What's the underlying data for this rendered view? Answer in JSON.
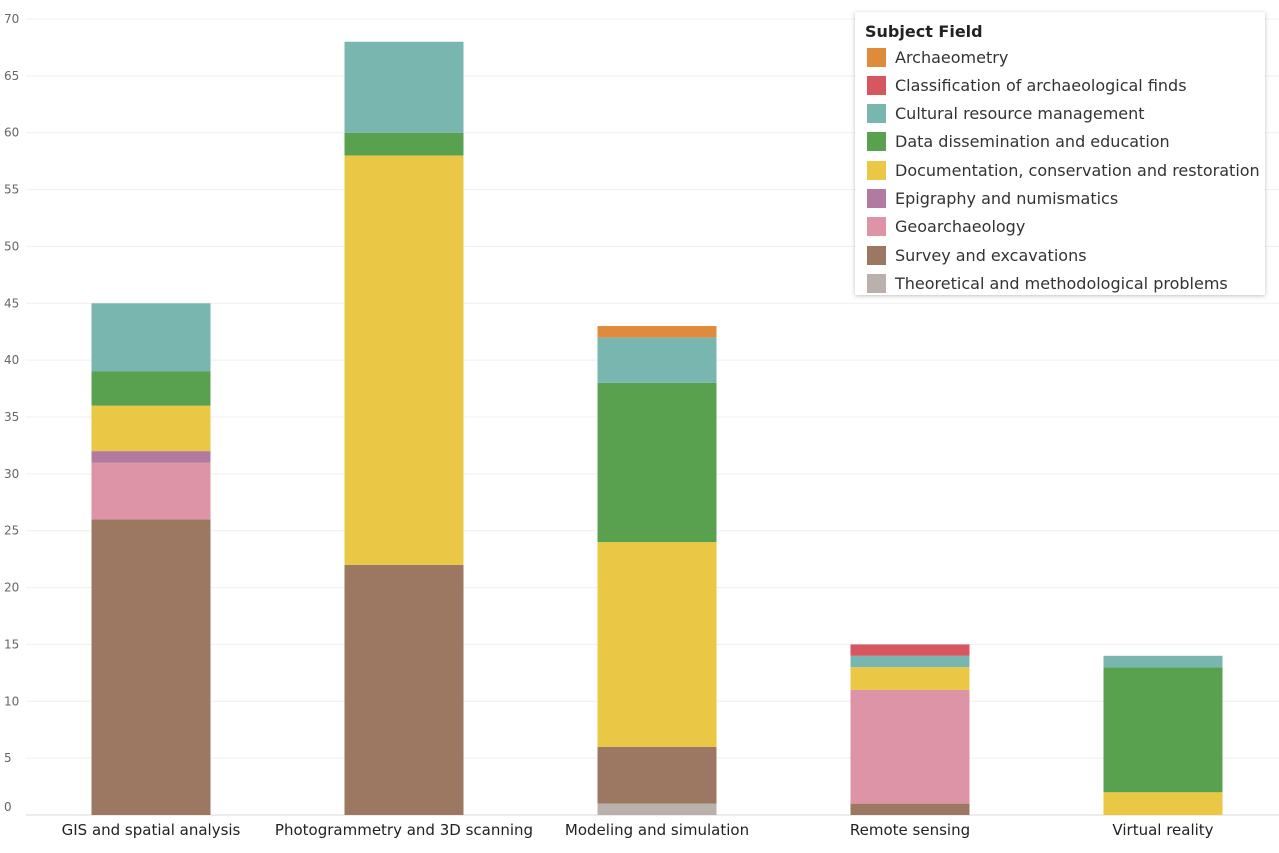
{
  "chart_data": {
    "type": "bar",
    "stacked": true,
    "categories": [
      "GIS and spatial analysis",
      "Photogrammetry and 3D scanning",
      "Modeling and simulation",
      "Remote sensing",
      "Virtual reality"
    ],
    "ylim": [
      0,
      70
    ],
    "yticks": [
      0,
      5,
      10,
      15,
      20,
      25,
      30,
      35,
      40,
      45,
      50,
      55,
      60,
      65,
      70
    ],
    "grid": true,
    "legend": {
      "title": "Subject Field",
      "placement": "top-right"
    },
    "series": [
      {
        "name": "Theoretical and methodological problems",
        "color": "#bab0ac",
        "values": [
          0,
          0,
          1,
          0,
          0
        ]
      },
      {
        "name": "Survey and excavations",
        "color": "#9c7761",
        "values": [
          26,
          22,
          5,
          1,
          0
        ]
      },
      {
        "name": "Geoarchaeology",
        "color": "#dc94a6",
        "values": [
          5,
          0,
          0,
          10,
          0
        ]
      },
      {
        "name": "Epigraphy and numismatics",
        "color": "#b07aa1",
        "values": [
          1,
          0,
          0,
          0,
          0
        ]
      },
      {
        "name": "Documentation, conservation and restoration",
        "color": "#eac846",
        "values": [
          4,
          36,
          18,
          2,
          2
        ]
      },
      {
        "name": "Data dissemination and education",
        "color": "#59a14f",
        "values": [
          3,
          2,
          14,
          0,
          11
        ]
      },
      {
        "name": "Cultural resource management",
        "color": "#7ab6b0",
        "values": [
          6,
          8,
          4,
          1,
          1
        ]
      },
      {
        "name": "Classification of archaeological finds",
        "color": "#d6575f",
        "values": [
          0,
          0,
          0,
          1,
          0
        ]
      },
      {
        "name": "Archaeometry",
        "color": "#e08a3c",
        "values": [
          0,
          0,
          1,
          0,
          0
        ]
      }
    ],
    "legend_order": [
      "Archaeometry",
      "Classification of archaeological finds",
      "Cultural resource management",
      "Data dissemination and education",
      "Documentation, conservation and restoration",
      "Epigraphy and numismatics",
      "Geoarchaeology",
      "Survey and excavations",
      "Theoretical and methodological problems"
    ]
  }
}
